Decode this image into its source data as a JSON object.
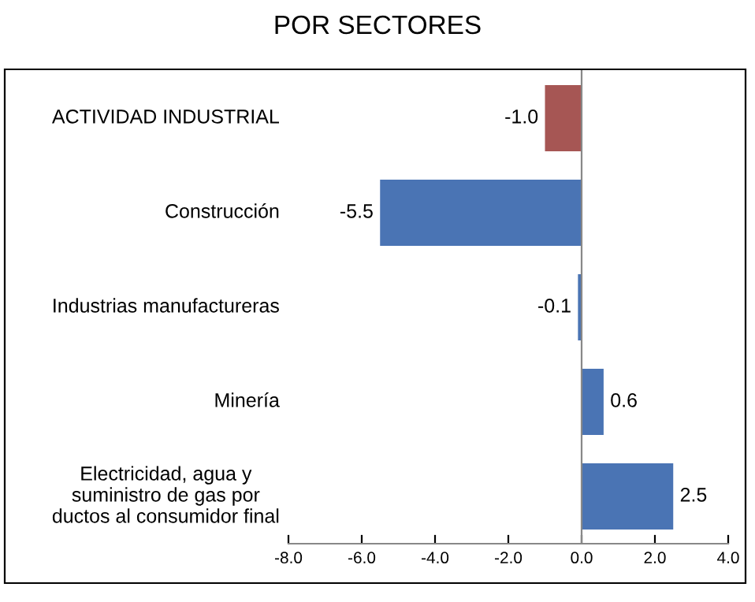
{
  "chart_data": {
    "type": "bar",
    "orientation": "horizontal",
    "title": "POR SECTORES",
    "categories": [
      "ACTIVIDAD INDUSTRIAL",
      "Construcción",
      "Industrias manufactureras",
      "Minería",
      "Electricidad, agua y\nsuministro de gas por\nductos al consumidor final"
    ],
    "values": [
      -1.0,
      -5.5,
      -0.1,
      0.6,
      2.5
    ],
    "colors": [
      "#a65654",
      "#4a74b4",
      "#4a74b4",
      "#4a74b4",
      "#4a74b4"
    ],
    "value_labels": [
      "-1.0",
      "-5.5",
      "-0.1",
      "0.6",
      "2.5"
    ],
    "xlim": [
      -8,
      4
    ],
    "xticks": [
      {
        "value": -8,
        "label": "-8.0"
      },
      {
        "value": -6,
        "label": "-6.0"
      },
      {
        "value": -4,
        "label": "-4.0"
      },
      {
        "value": -2,
        "label": "-2.0"
      },
      {
        "value": 0,
        "label": "0.0"
      },
      {
        "value": 2,
        "label": "2.0"
      },
      {
        "value": 4,
        "label": "4.0"
      }
    ],
    "legend": false
  }
}
